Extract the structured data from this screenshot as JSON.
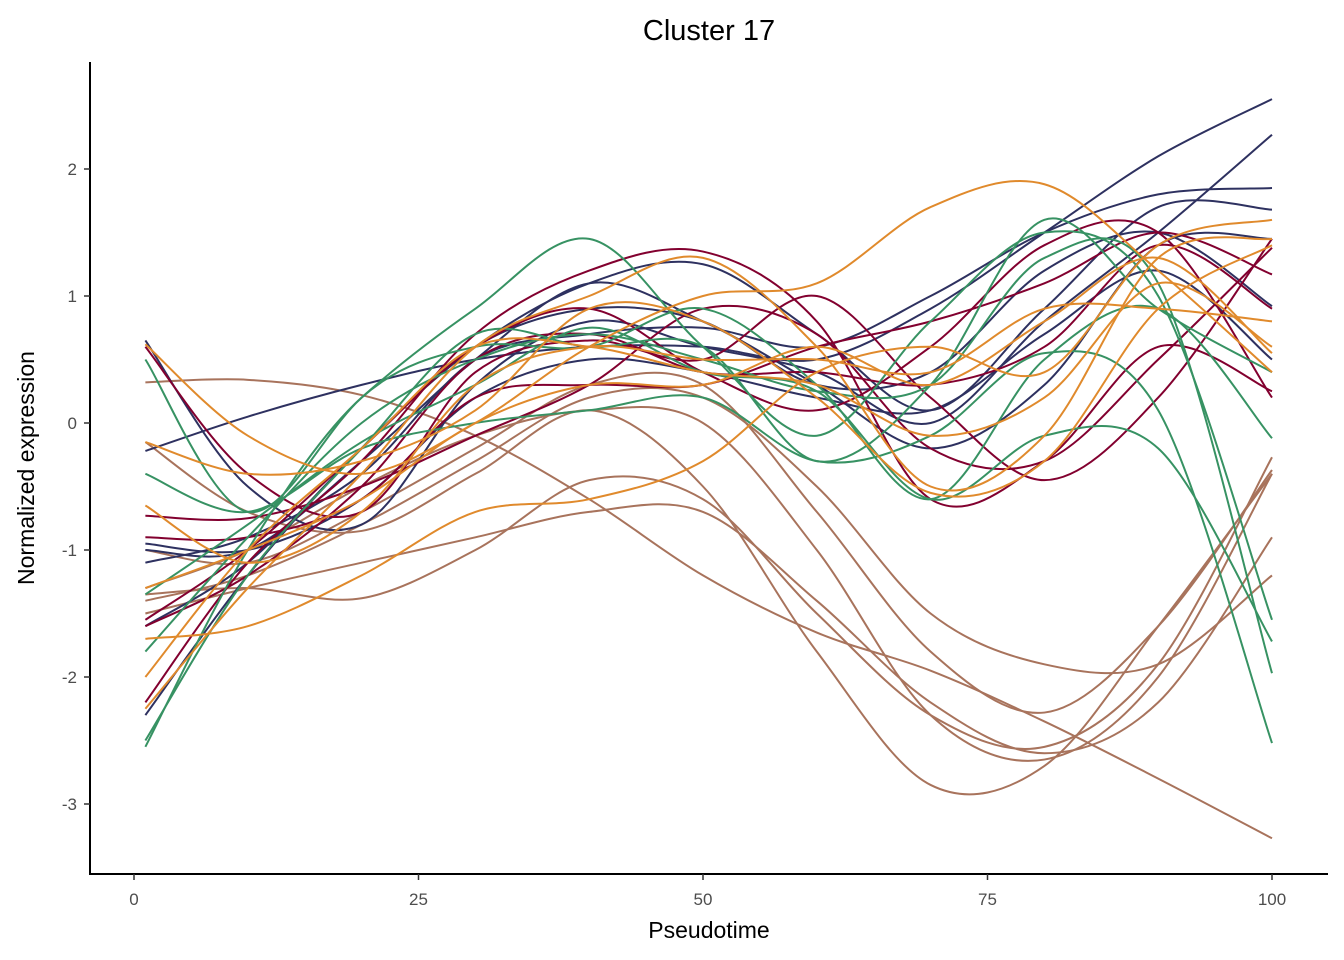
{
  "chart_data": {
    "type": "line",
    "title": "Cluster 17",
    "xlabel": "Pseudotime",
    "ylabel": "Normalized expression",
    "xlim": [
      -2.5,
      104
    ],
    "ylim": [
      -3.55,
      2.85
    ],
    "xticks": [
      0,
      25,
      50,
      75,
      100
    ],
    "yticks": [
      -3,
      -2,
      -1,
      0,
      1,
      2
    ],
    "grid": false,
    "legend": "none",
    "x": [
      1,
      10,
      20,
      30,
      40,
      50,
      60,
      70,
      80,
      90,
      100
    ],
    "colors": {
      "navy": "#2e3160",
      "crimson": "#82002f",
      "green": "#379263",
      "orange": "#e08a2c",
      "brown": "#a8735c"
    },
    "series": [
      {
        "group": "brown",
        "values": [
          0.32,
          0.34,
          0.22,
          -0.1,
          -0.6,
          -1.2,
          -1.65,
          -1.95,
          -2.35,
          -2.8,
          -3.27
        ]
      },
      {
        "group": "brown",
        "values": [
          -0.15,
          -0.7,
          -0.85,
          -0.4,
          0.1,
          -0.5,
          -1.8,
          -2.85,
          -2.7,
          -1.6,
          -0.4
        ]
      },
      {
        "group": "brown",
        "values": [
          -1.35,
          -1.3,
          -1.38,
          -1.0,
          -0.45,
          -0.6,
          -1.5,
          -2.3,
          -2.55,
          -1.9,
          -0.27
        ]
      },
      {
        "group": "brown",
        "values": [
          -1.5,
          -1.3,
          -1.1,
          -0.9,
          -0.7,
          -0.7,
          -1.4,
          -2.2,
          -2.6,
          -2.2,
          -0.9
        ]
      },
      {
        "group": "brown",
        "values": [
          -1.4,
          -1.2,
          -0.8,
          -0.3,
          0.2,
          0.2,
          -0.5,
          -1.5,
          -1.9,
          -1.9,
          -1.2
        ]
      },
      {
        "group": "brown",
        "values": [
          -1.0,
          -1.1,
          -0.7,
          -0.2,
          0.3,
          0.3,
          -0.7,
          -1.8,
          -2.28,
          -1.6,
          -0.37
        ]
      },
      {
        "group": "brown",
        "values": [
          -1.3,
          -1.0,
          -0.5,
          -0.1,
          0.1,
          0.0,
          -1.0,
          -2.3,
          -2.65,
          -2.0,
          -0.4
        ]
      },
      {
        "group": "navy",
        "values": [
          -0.22,
          0.05,
          0.3,
          0.5,
          0.6,
          0.6,
          0.5,
          0.9,
          1.5,
          2.1,
          2.55
        ]
      },
      {
        "group": "navy",
        "values": [
          0.65,
          -0.5,
          -0.8,
          0.3,
          0.8,
          0.6,
          0.4,
          0.0,
          0.8,
          1.5,
          2.27
        ]
      },
      {
        "group": "navy",
        "values": [
          -1.1,
          -0.9,
          -0.4,
          0.5,
          0.7,
          0.75,
          0.6,
          1.0,
          1.5,
          1.8,
          1.85
        ]
      },
      {
        "group": "navy",
        "values": [
          -2.3,
          -1.2,
          -0.2,
          0.6,
          1.1,
          1.25,
          0.7,
          0.1,
          0.9,
          1.7,
          1.68
        ]
      },
      {
        "group": "navy",
        "values": [
          -1.6,
          -1.1,
          -0.2,
          0.6,
          0.9,
          0.8,
          0.3,
          0.4,
          1.2,
          1.5,
          0.92
        ]
      },
      {
        "group": "navy",
        "values": [
          -0.95,
          -1.0,
          -0.6,
          0.2,
          0.5,
          0.4,
          0.2,
          0.1,
          0.7,
          1.2,
          0.5
        ]
      },
      {
        "group": "navy",
        "values": [
          -1.0,
          -1.0,
          -0.3,
          0.5,
          1.1,
          0.8,
          0.3,
          -0.2,
          0.3,
          1.4,
          1.45
        ]
      },
      {
        "group": "crimson",
        "values": [
          -2.2,
          -1.1,
          -0.3,
          0.7,
          1.2,
          1.35,
          0.8,
          -0.6,
          -0.3,
          0.6,
          0.25
        ]
      },
      {
        "group": "crimson",
        "values": [
          0.6,
          -0.4,
          -0.7,
          0.4,
          0.65,
          0.5,
          1.0,
          0.2,
          -0.45,
          0.2,
          1.45
        ]
      },
      {
        "group": "crimson",
        "values": [
          -0.9,
          -0.9,
          -0.6,
          0.2,
          0.3,
          0.3,
          0.6,
          0.8,
          1.1,
          1.5,
          1.17
        ]
      },
      {
        "group": "crimson",
        "values": [
          -0.73,
          -0.75,
          -0.5,
          -0.1,
          0.3,
          0.9,
          0.7,
          -0.2,
          -0.3,
          0.5,
          1.38
        ]
      },
      {
        "group": "crimson",
        "values": [
          -1.6,
          -1.2,
          -0.5,
          0.5,
          0.7,
          0.4,
          0.4,
          0.3,
          0.6,
          1.4,
          0.9
        ]
      },
      {
        "group": "crimson",
        "values": [
          -1.55,
          -1.0,
          -0.2,
          0.6,
          0.9,
          0.4,
          0.1,
          0.6,
          1.4,
          1.5,
          0.2
        ]
      },
      {
        "group": "green",
        "values": [
          0.5,
          -0.7,
          0.2,
          0.9,
          1.45,
          0.6,
          -0.1,
          0.8,
          1.5,
          1.0,
          -1.55
        ]
      },
      {
        "group": "green",
        "values": [
          -2.55,
          -1.0,
          0.2,
          0.6,
          0.6,
          0.9,
          0.3,
          -0.6,
          0.5,
          0.9,
          -0.12
        ]
      },
      {
        "group": "green",
        "values": [
          -1.8,
          -0.9,
          0.0,
          0.5,
          0.7,
          0.5,
          0.25,
          0.3,
          1.3,
          1.1,
          -1.97
        ]
      },
      {
        "group": "green",
        "values": [
          -0.4,
          -0.7,
          -0.2,
          0.0,
          0.1,
          0.2,
          -0.3,
          -0.1,
          0.55,
          0.1,
          -2.52
        ]
      },
      {
        "group": "green",
        "values": [
          -2.5,
          -1.2,
          -0.2,
          0.7,
          0.6,
          0.6,
          -0.3,
          0.3,
          1.6,
          0.9,
          0.4
        ]
      },
      {
        "group": "green",
        "values": [
          -1.35,
          -0.8,
          -0.15,
          0.3,
          0.75,
          0.4,
          0.25,
          -0.6,
          -0.1,
          -0.2,
          -1.72
        ]
      },
      {
        "group": "orange",
        "values": [
          0.62,
          -0.1,
          -0.4,
          0.0,
          0.6,
          1.0,
          1.1,
          1.7,
          1.88,
          1.2,
          0.4
        ]
      },
      {
        "group": "orange",
        "values": [
          -0.65,
          -1.1,
          -0.7,
          0.3,
          0.6,
          0.5,
          0.5,
          0.4,
          0.9,
          0.9,
          0.8
        ]
      },
      {
        "group": "orange",
        "values": [
          -1.7,
          -1.6,
          -1.2,
          -0.7,
          -0.6,
          -0.3,
          0.4,
          0.6,
          0.4,
          1.4,
          1.6
        ]
      },
      {
        "group": "orange",
        "values": [
          -2.25,
          -1.3,
          -0.4,
          0.6,
          1.0,
          1.3,
          0.6,
          -0.5,
          -0.1,
          1.3,
          1.45
        ]
      },
      {
        "group": "orange",
        "values": [
          -1.3,
          -1.0,
          -0.6,
          0.0,
          0.3,
          0.3,
          0.6,
          0.3,
          0.8,
          1.3,
          0.55
        ]
      },
      {
        "group": "orange",
        "values": [
          -0.15,
          -0.4,
          -0.3,
          0.1,
          0.9,
          0.8,
          0.2,
          -0.55,
          -0.3,
          0.9,
          1.4
        ]
      },
      {
        "group": "orange",
        "values": [
          -2.0,
          -1.0,
          -0.2,
          0.6,
          0.6,
          0.4,
          0.3,
          -0.1,
          0.2,
          1.1,
          0.6
        ]
      }
    ]
  }
}
